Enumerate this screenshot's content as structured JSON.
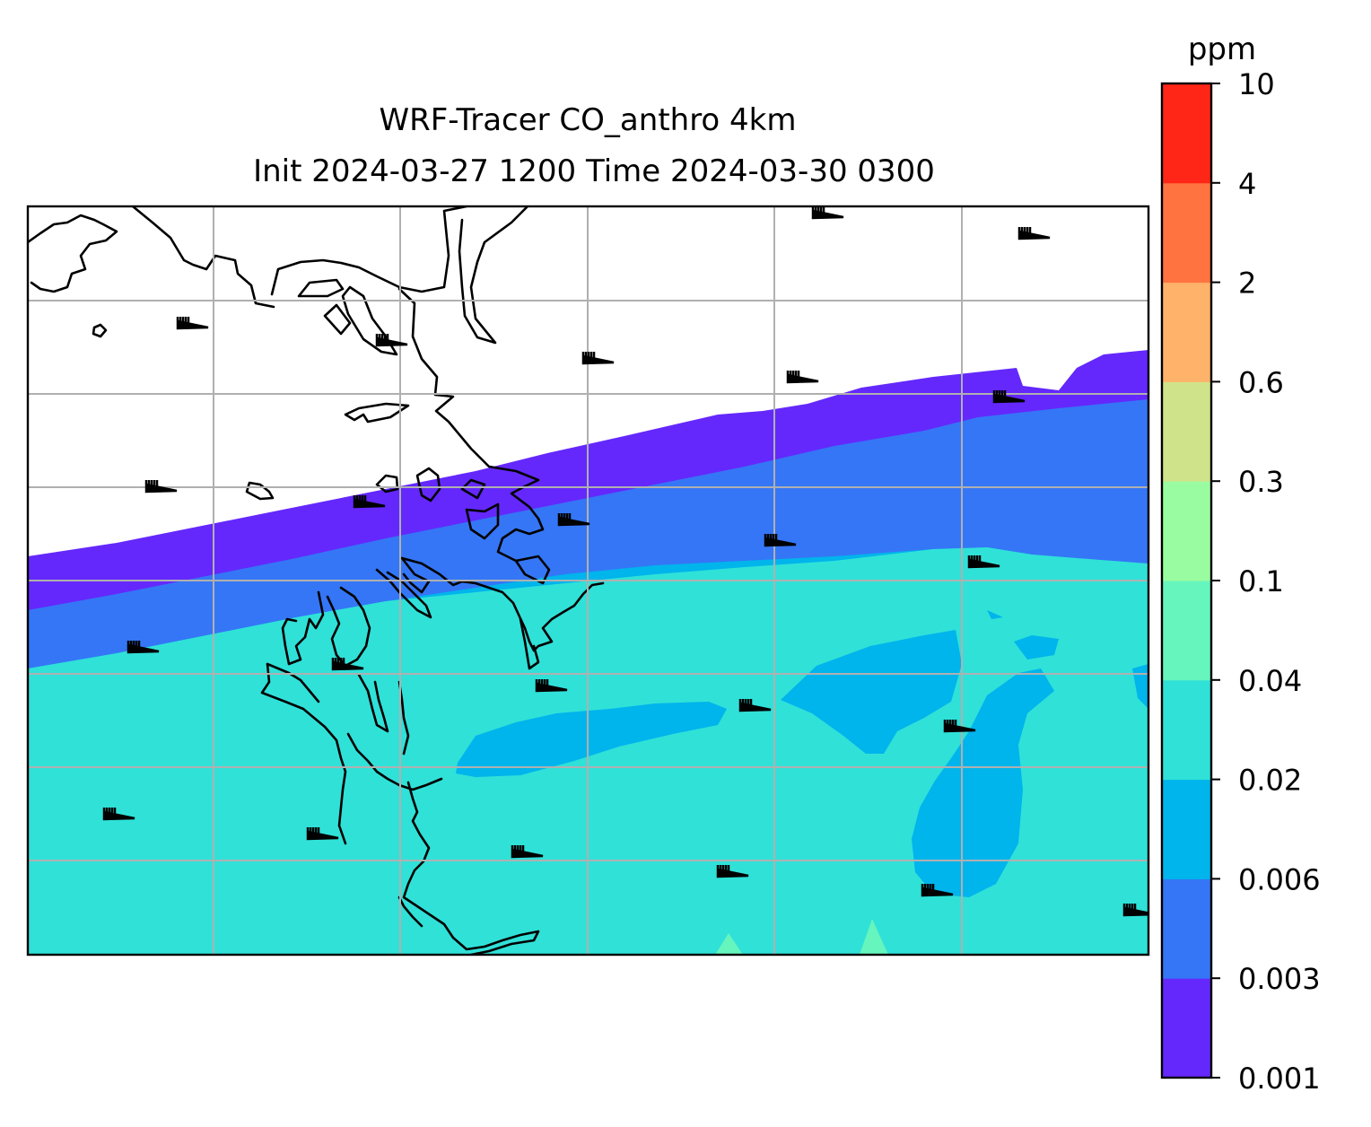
{
  "title": {
    "line1": "WRF-Tracer CO_anthro 4km",
    "line2": "Init 2024-03-27 1200 Time 2024-03-30 0300"
  },
  "colorbar": {
    "unit": "ppm",
    "levels": [
      "0.001",
      "0.003",
      "0.006",
      "0.02",
      "0.04",
      "0.1",
      "0.3",
      "0.6",
      "2",
      "4",
      "10"
    ],
    "colors": [
      "#6428fc",
      "#3576f6",
      "#00b4ec",
      "#30e1d8",
      "#66f5bd",
      "#9afca0",
      "#cfe38a",
      "#ffb26a",
      "#ff7340",
      "#ff2618"
    ]
  },
  "chart_data": {
    "type": "heatmap",
    "variable": "CO_anthro",
    "units": "ppm",
    "levels": [
      0.001,
      0.003,
      0.006,
      0.02,
      0.04,
      0.1,
      0.3,
      0.6,
      2,
      4,
      10
    ],
    "grid": true,
    "overlays": [
      "coastlines",
      "wind-barbs"
    ],
    "field_description_bands_south_to_north": [
      "0.02-0.04",
      "0.006-0.02",
      "0.003-0.006",
      "0.001-0.003",
      "below 0.001"
    ]
  }
}
